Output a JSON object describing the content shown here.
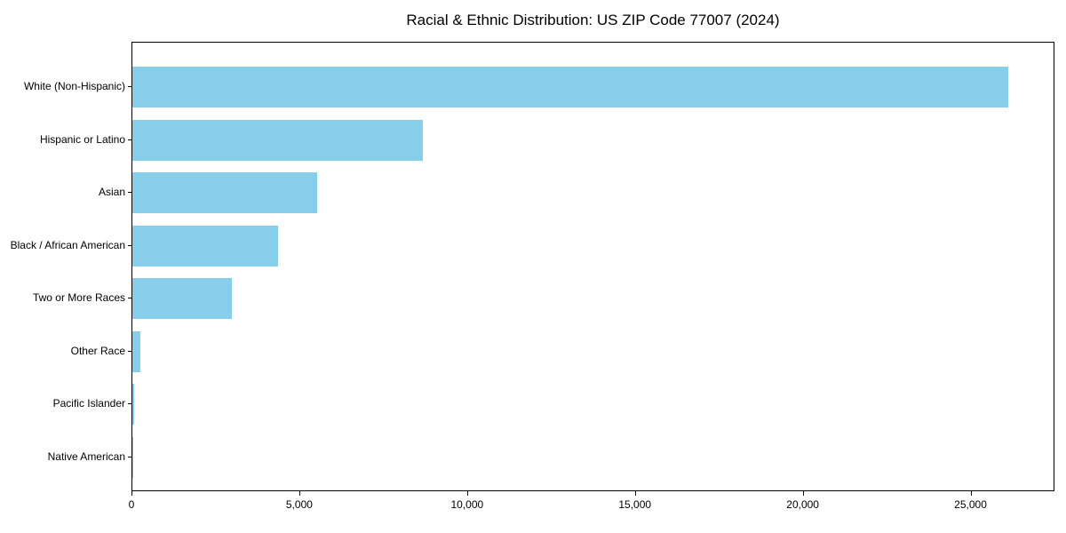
{
  "chart_data": {
    "type": "bar",
    "orientation": "horizontal",
    "title": "Racial & Ethnic Distribution: US ZIP Code 77007 (2024)",
    "categories": [
      "White (Non-Hispanic)",
      "Hispanic or Latino",
      "Asian",
      "Black / African American",
      "Two or More Races",
      "Other Race",
      "Pacific Islander",
      "Native American"
    ],
    "values": [
      26100,
      8650,
      5500,
      4330,
      2960,
      250,
      40,
      25
    ],
    "xlabel": "",
    "ylabel": "",
    "xlim": [
      0,
      27500
    ],
    "x_ticks": [
      0,
      5000,
      10000,
      15000,
      20000,
      25000
    ],
    "x_tick_labels": [
      "0",
      "5,000",
      "10,000",
      "15,000",
      "20,000",
      "25,000"
    ],
    "grid": false,
    "legend": null,
    "bar_color": "#87CEEB",
    "spine_color": "#000000",
    "text_color": "#000000",
    "background_color": "#ffffff"
  }
}
